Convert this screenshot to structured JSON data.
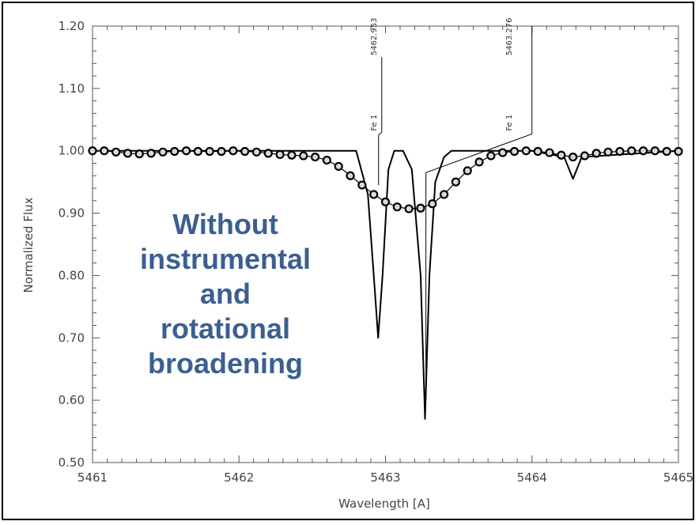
{
  "chart_data": {
    "type": "line",
    "xlabel": "Wavelength [A]",
    "ylabel": "Normalized Flux",
    "xlim": [
      5461,
      5465
    ],
    "ylim": [
      0.5,
      1.2
    ],
    "x_ticks": [
      5461,
      5462,
      5463,
      5464,
      5465
    ],
    "x_tick_labels": [
      "5461",
      "5462",
      "5463",
      "5464",
      "5465"
    ],
    "y_ticks": [
      0.5,
      0.6,
      0.7,
      0.8,
      0.9,
      1.0,
      1.1,
      1.2
    ],
    "y_tick_labels": [
      "0.50",
      "0.60",
      "0.70",
      "0.80",
      "0.90",
      "1.00",
      "1.10",
      "1.20"
    ],
    "series": [
      {
        "style": "solid",
        "x": [
          5461.0,
          5462.5,
          5462.8,
          5462.88,
          5462.92,
          5462.95,
          5462.98,
          5463.02,
          5463.06,
          5463.12,
          5463.18,
          5463.24,
          5463.27,
          5463.3,
          5463.34,
          5463.4,
          5463.45,
          5463.55,
          5464.0,
          5464.22,
          5464.28,
          5464.34,
          5465.0
        ],
        "y": [
          1.0,
          1.0,
          1.0,
          0.93,
          0.8,
          0.7,
          0.8,
          0.97,
          1.0,
          1.0,
          0.97,
          0.8,
          0.57,
          0.8,
          0.95,
          0.99,
          1.0,
          1.0,
          1.0,
          0.99,
          0.955,
          0.99,
          1.0
        ]
      },
      {
        "style": "circles",
        "x": [
          5461.0,
          5461.08,
          5461.16,
          5461.24,
          5461.32,
          5461.4,
          5461.48,
          5461.56,
          5461.64,
          5461.72,
          5461.8,
          5461.88,
          5461.96,
          5462.04,
          5462.12,
          5462.2,
          5462.28,
          5462.36,
          5462.44,
          5462.52,
          5462.6,
          5462.68,
          5462.76,
          5462.84,
          5462.92,
          5463.0,
          5463.08,
          5463.16,
          5463.24,
          5463.32,
          5463.4,
          5463.48,
          5463.56,
          5463.64,
          5463.72,
          5463.8,
          5463.88,
          5463.96,
          5464.04,
          5464.12,
          5464.2,
          5464.28,
          5464.36,
          5464.44,
          5464.52,
          5464.6,
          5464.68,
          5464.76,
          5464.84,
          5464.92,
          5465.0
        ],
        "y": [
          1.0,
          1.0,
          0.998,
          0.996,
          0.995,
          0.996,
          0.998,
          0.999,
          1.0,
          0.999,
          0.999,
          0.999,
          1.0,
          0.999,
          0.998,
          0.996,
          0.994,
          0.993,
          0.992,
          0.99,
          0.985,
          0.975,
          0.96,
          0.945,
          0.93,
          0.918,
          0.91,
          0.907,
          0.908,
          0.915,
          0.93,
          0.95,
          0.968,
          0.982,
          0.992,
          0.997,
          0.999,
          1.0,
          0.999,
          0.997,
          0.993,
          0.99,
          0.992,
          0.996,
          0.998,
          0.999,
          1.0,
          1.0,
          1.0,
          0.999,
          0.999
        ]
      }
    ],
    "line_markers": [
      {
        "wavelength": 5462.953,
        "label": "5462.953",
        "element": "Fe 1"
      },
      {
        "wavelength": 5463.276,
        "label": "5463.276",
        "element": "Fe 1"
      }
    ],
    "annotation": [
      "Without",
      "instrumental",
      "and",
      "rotational",
      "broadening"
    ],
    "colors": {
      "annotation": "#3b5f8f",
      "line": "#000000",
      "axis": "#555555"
    }
  }
}
